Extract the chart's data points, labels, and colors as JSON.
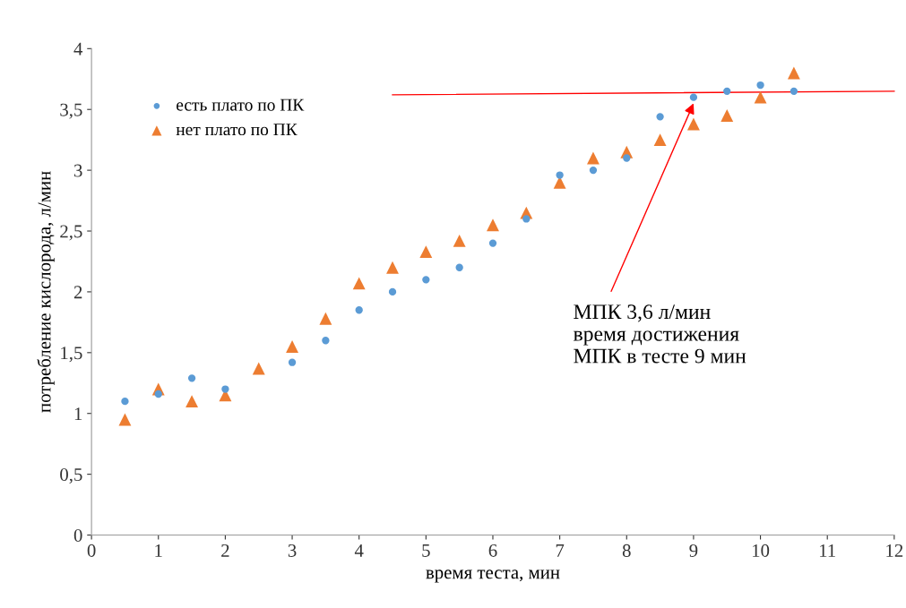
{
  "chart_data": {
    "type": "scatter",
    "xlabel": "время теста, мин",
    "ylabel": "потребление кислорода, л/мин",
    "x": [
      0.5,
      1,
      1.5,
      2,
      2.5,
      3,
      3.5,
      4,
      4.5,
      5,
      5.5,
      6,
      6.5,
      7,
      7.5,
      8,
      8.5,
      9,
      9.5,
      10,
      10.5
    ],
    "series": [
      {
        "name": "есть плато по ПК",
        "color": "#5b9bd5",
        "marker": "circle",
        "values": [
          1.1,
          1.16,
          1.29,
          1.2,
          null,
          1.42,
          1.6,
          1.85,
          2.0,
          2.1,
          2.2,
          2.4,
          2.6,
          2.96,
          3.0,
          3.1,
          3.44,
          3.6,
          3.65,
          3.7,
          3.65
        ]
      },
      {
        "name": "нет плато по ПК",
        "color": "#ed7d31",
        "marker": "triangle",
        "values": [
          0.95,
          1.2,
          1.1,
          1.15,
          1.37,
          1.55,
          1.78,
          2.07,
          2.2,
          2.33,
          2.42,
          2.55,
          2.65,
          2.9,
          3.1,
          3.15,
          3.25,
          3.38,
          3.45,
          3.6,
          3.8
        ]
      },
      {
        "type": "line",
        "color": "#ff0000",
        "x": [
          4.5,
          12
        ],
        "values": [
          3.62,
          3.65
        ]
      }
    ],
    "annotations": [
      {
        "text": "МПК 3,6 л/мин\nвремя достижения\nМПК в тесте 9 мин",
        "x": 9,
        "y": 3.55
      }
    ],
    "xlim": [
      0,
      12
    ],
    "xticks": [
      0,
      1,
      2,
      3,
      4,
      5,
      6,
      7,
      8,
      9,
      10,
      11,
      12
    ],
    "ylim": [
      0,
      4
    ],
    "yticks": [
      0,
      {
        "value": 0.5,
        "label": "0,5"
      },
      1,
      {
        "value": 1.5,
        "label": "1,5"
      },
      2,
      {
        "value": 2.5,
        "label": "2,5"
      },
      3,
      {
        "value": 3.5,
        "label": "3,5"
      },
      4
    ],
    "grid": false,
    "legend": "top left"
  }
}
